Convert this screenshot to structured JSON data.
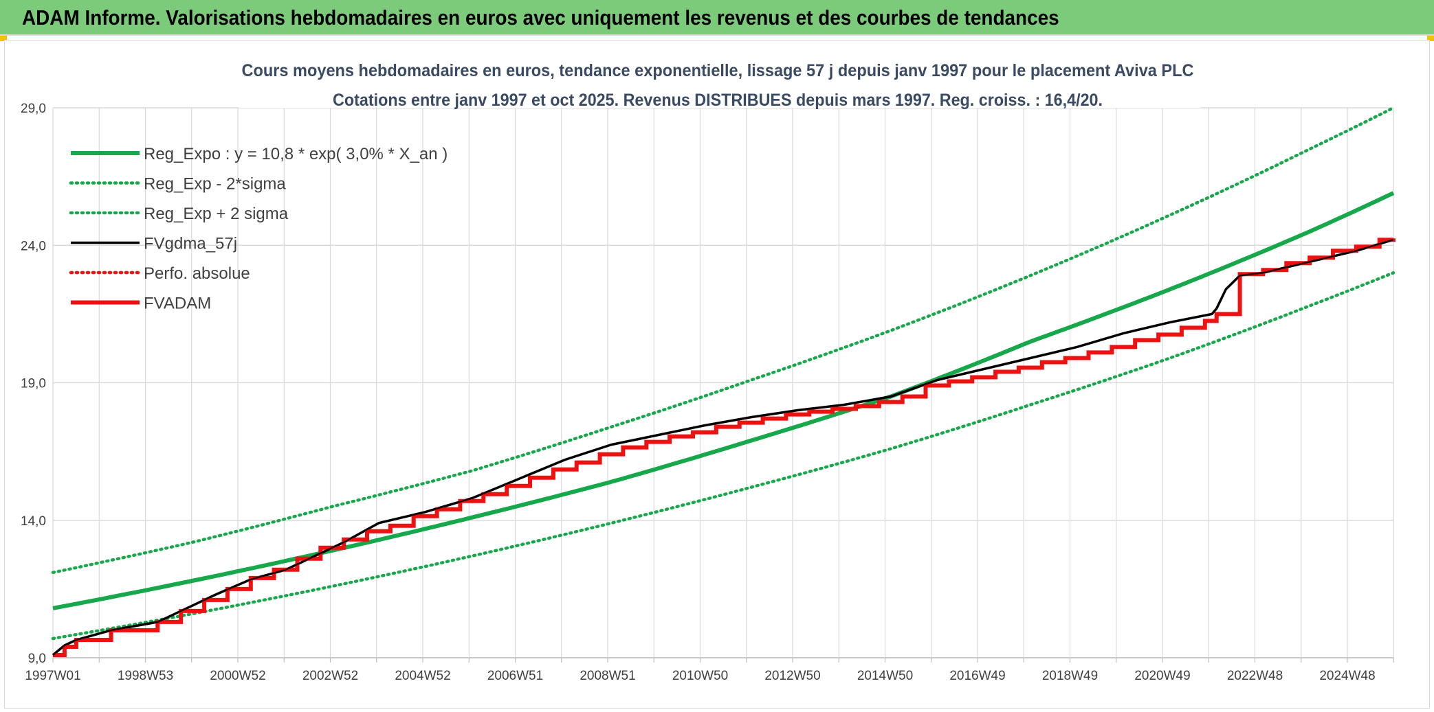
{
  "banner": {
    "title": "ADAM Informe. Valorisations hebdomadaires en euros avec uniquement les revenus et des courbes de tendances"
  },
  "colors": {
    "banner_bg": "#7ccb7a",
    "reg_green": "#16a84a",
    "fv_black": "#000000",
    "adam_red": "#ee1111",
    "grid": "#d9d9d9",
    "text": "#404040",
    "title_text": "#3a4a63"
  },
  "chart_data": {
    "type": "line",
    "title": "Cours moyens hebdomadaires en euros, tendance exponentielle, lissage 57 j depuis janv 1997 pour le placement Aviva PLC",
    "subtitle": "Cotations entre janv 1997 et oct 2025. Revenus DISTRIBUES depuis mars 1997. Reg. croiss. : 16,4/20.",
    "xlabel": "",
    "ylabel": "",
    "ylim": [
      9.0,
      29.0
    ],
    "y_ticks": [
      "29,0",
      "24,0",
      "19,0",
      "14,0",
      "9,0"
    ],
    "x_tick_labels": [
      "1997W01",
      "1998W53",
      "2000W52",
      "2002W52",
      "2004W52",
      "2006W51",
      "2008W51",
      "2010W50",
      "2012W50",
      "2014W50",
      "2016W49",
      "2018W49",
      "2020W49",
      "2022W48",
      "2024W48"
    ],
    "grid": true,
    "legend_position": "top-left",
    "x_range_years": [
      1997.0,
      2025.8
    ],
    "series": [
      {
        "name": "Reg_Expo : y = 10,8 * exp( 3,0% *  X_an )",
        "style": "solid-thick",
        "color": "#16a84a",
        "x": [
          1997.0,
          2000.0,
          2003.0,
          2006.0,
          2009.0,
          2012.0,
          2015.0,
          2018.0,
          2021.0,
          2024.0,
          2025.8
        ],
        "values": [
          10.8,
          11.8,
          12.9,
          14.1,
          15.4,
          16.9,
          18.5,
          20.5,
          22.4,
          24.5,
          25.9
        ]
      },
      {
        "name": "Reg_Exp - 2*sigma",
        "style": "dotted",
        "color": "#16a84a",
        "x": [
          1997.0,
          2000.0,
          2003.0,
          2006.0,
          2009.0,
          2012.0,
          2015.0,
          2018.0,
          2021.0,
          2024.0,
          2025.8
        ],
        "values": [
          9.7,
          10.6,
          11.6,
          12.7,
          13.9,
          15.2,
          16.6,
          18.2,
          19.9,
          21.8,
          23.0
        ]
      },
      {
        "name": "Reg_Exp + 2 sigma",
        "style": "dotted",
        "color": "#16a84a",
        "x": [
          1997.0,
          2000.0,
          2003.0,
          2006.0,
          2009.0,
          2012.0,
          2015.0,
          2018.0,
          2021.0,
          2024.0,
          2025.8
        ],
        "values": [
          12.1,
          13.2,
          14.5,
          15.8,
          17.4,
          19.1,
          20.9,
          22.9,
          25.1,
          27.5,
          29.0
        ]
      },
      {
        "name": "FVgdma_57j",
        "style": "solid",
        "color": "#000000",
        "x": [
          1997.0,
          1997.25,
          1997.5,
          1998.25,
          1999.25,
          2000.0,
          2000.5,
          2001.25,
          2002.0,
          2002.5,
          2003.25,
          2004.0,
          2005.0,
          2006.0,
          2007.0,
          2008.0,
          2009.0,
          2010.0,
          2011.0,
          2012.0,
          2013.0,
          2014.0,
          2015.0,
          2016.0,
          2017.0,
          2018.0,
          2019.0,
          2020.0,
          2021.0,
          2021.9,
          2022.0,
          2022.2,
          2022.5,
          2023.0,
          2024.0,
          2025.0,
          2025.8
        ],
        "values": [
          9.1,
          9.45,
          9.65,
          10.0,
          10.3,
          10.9,
          11.3,
          11.85,
          12.2,
          12.6,
          13.2,
          13.9,
          14.3,
          14.8,
          15.5,
          16.2,
          16.75,
          17.1,
          17.45,
          17.75,
          18.0,
          18.2,
          18.5,
          19.1,
          19.5,
          19.9,
          20.3,
          20.8,
          21.2,
          21.5,
          21.7,
          22.4,
          22.9,
          23.0,
          23.4,
          23.8,
          24.2
        ]
      },
      {
        "name": "Perfo. absolue",
        "style": "dotted",
        "color": "#ee1111",
        "x": [],
        "values": []
      },
      {
        "name": "FVADAM",
        "style": "step-thick",
        "color": "#ee1111",
        "x": [
          1997.0,
          1997.25,
          1997.5,
          1998.25,
          1999.25,
          1999.75,
          2000.25,
          2000.75,
          2001.25,
          2001.75,
          2002.25,
          2002.75,
          2003.25,
          2003.75,
          2004.25,
          2004.75,
          2005.25,
          2005.75,
          2006.25,
          2006.75,
          2007.25,
          2007.75,
          2008.25,
          2008.75,
          2009.25,
          2009.75,
          2010.25,
          2010.75,
          2011.25,
          2011.75,
          2012.25,
          2012.75,
          2013.25,
          2013.75,
          2014.25,
          2014.75,
          2015.25,
          2015.75,
          2016.25,
          2016.75,
          2017.25,
          2017.75,
          2018.25,
          2018.75,
          2019.25,
          2019.75,
          2020.25,
          2020.75,
          2021.25,
          2021.75,
          2022.0,
          2022.5,
          2023.0,
          2023.5,
          2024.0,
          2024.5,
          2025.0,
          2025.5,
          2025.8
        ],
        "values": [
          9.1,
          9.4,
          9.65,
          10.0,
          10.3,
          10.7,
          11.1,
          11.5,
          11.9,
          12.2,
          12.6,
          13.0,
          13.3,
          13.6,
          13.8,
          14.15,
          14.4,
          14.7,
          14.95,
          15.25,
          15.55,
          15.85,
          16.1,
          16.4,
          16.65,
          16.85,
          17.05,
          17.2,
          17.4,
          17.55,
          17.7,
          17.85,
          17.95,
          18.05,
          18.15,
          18.3,
          18.5,
          18.9,
          19.05,
          19.2,
          19.4,
          19.55,
          19.75,
          19.9,
          20.1,
          20.3,
          20.55,
          20.75,
          21.0,
          21.25,
          21.5,
          22.95,
          23.1,
          23.35,
          23.55,
          23.8,
          23.95,
          24.2,
          24.25
        ]
      }
    ]
  }
}
